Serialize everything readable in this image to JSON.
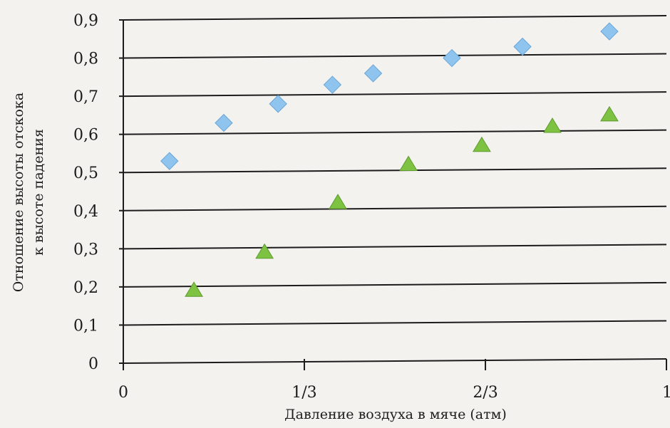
{
  "chart_data": {
    "type": "scatter",
    "title": "",
    "xlabel": "Давление воздуха в мяче (атм)",
    "ylabel_line1": "Отношение высоты отскока",
    "ylabel_line2": "к высоте падения",
    "xlim": [
      0,
      1
    ],
    "ylim": [
      0,
      0.9
    ],
    "grid": "horizontal",
    "x_ticks": [
      {
        "value": 0,
        "label": "0"
      },
      {
        "value": 0.3333,
        "label": "1/3"
      },
      {
        "value": 0.6667,
        "label": "2/3"
      },
      {
        "value": 1,
        "label": "1"
      }
    ],
    "y_ticks": [
      {
        "value": 0,
        "label": "0"
      },
      {
        "value": 0.1,
        "label": "0,1"
      },
      {
        "value": 0.2,
        "label": "0,2"
      },
      {
        "value": 0.3,
        "label": "0,3"
      },
      {
        "value": 0.4,
        "label": "0,4"
      },
      {
        "value": 0.5,
        "label": "0,5"
      },
      {
        "value": 0.6,
        "label": "0,6"
      },
      {
        "value": 0.7,
        "label": "0,7"
      },
      {
        "value": 0.8,
        "label": "0,8"
      },
      {
        "value": 0.9,
        "label": "0,9"
      }
    ],
    "series": [
      {
        "marker": "diamond",
        "color": "#8fc4ef",
        "stroke": "#6aa6d6",
        "points": [
          {
            "x": 0.085,
            "y": 0.53
          },
          {
            "x": 0.185,
            "y": 0.63
          },
          {
            "x": 0.285,
            "y": 0.68
          },
          {
            "x": 0.385,
            "y": 0.73
          },
          {
            "x": 0.46,
            "y": 0.76
          },
          {
            "x": 0.605,
            "y": 0.8
          },
          {
            "x": 0.735,
            "y": 0.83
          },
          {
            "x": 0.895,
            "y": 0.87
          }
        ]
      },
      {
        "marker": "triangle",
        "color": "#7ec242",
        "stroke": "#5e9a2e",
        "points": [
          {
            "x": 0.13,
            "y": 0.19
          },
          {
            "x": 0.26,
            "y": 0.29
          },
          {
            "x": 0.395,
            "y": 0.42
          },
          {
            "x": 0.525,
            "y": 0.52
          },
          {
            "x": 0.66,
            "y": 0.57
          },
          {
            "x": 0.79,
            "y": 0.62
          },
          {
            "x": 0.895,
            "y": 0.65
          }
        ]
      }
    ]
  }
}
